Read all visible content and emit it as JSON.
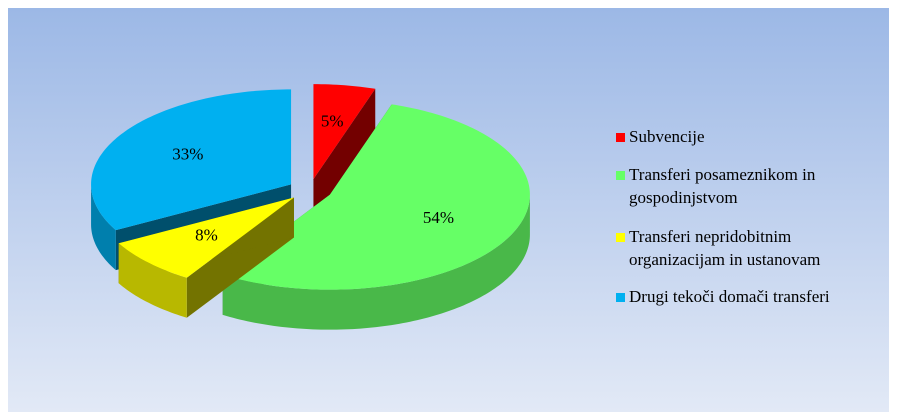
{
  "chart_data": {
    "type": "pie",
    "categories": [
      "Subvencije",
      "Transferi posameznikom in gospodinjstvom",
      "Transferi nepridobitnim organizacijam in ustanovam",
      "Drugi tekoči domači transferi"
    ],
    "values": [
      5,
      54,
      8,
      33
    ],
    "value_labels": [
      "5%",
      "54%",
      "8%",
      "33%"
    ],
    "colors": [
      "#ff0000",
      "#66ff66",
      "#ffff00",
      "#00b0f0"
    ],
    "legend": "right"
  }
}
